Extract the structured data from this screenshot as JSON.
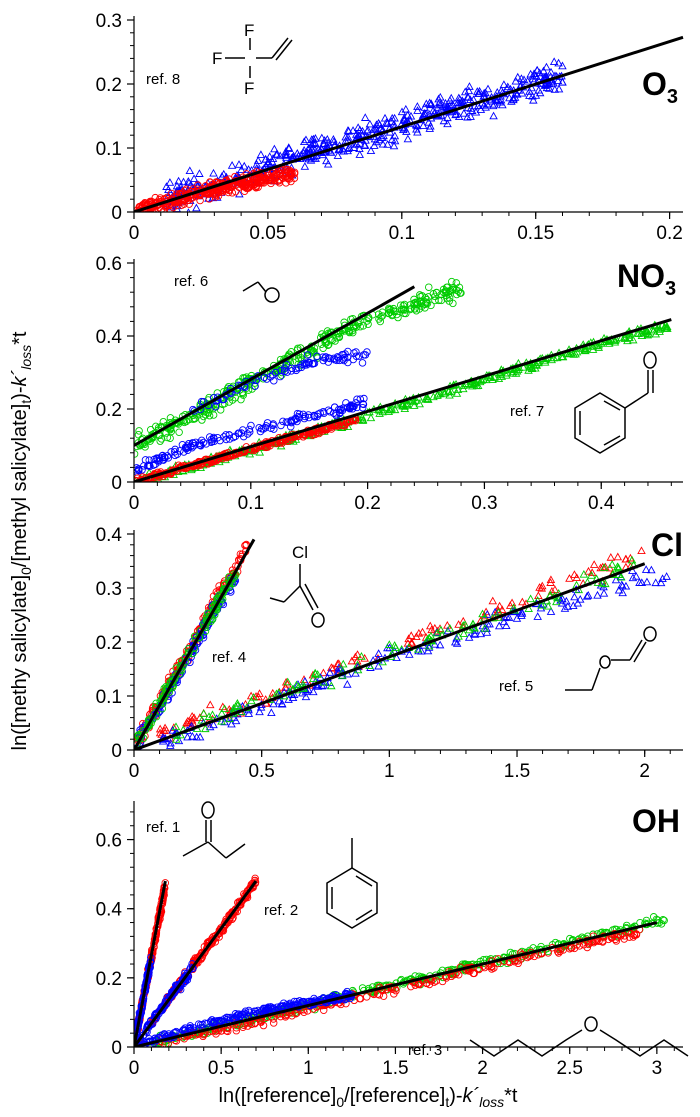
{
  "y_axis_title": "ln([methy salicylate]0/[methyl salicylate]t)-k´loss*t",
  "x_axis_title": "ln([reference]0/[reference]t)-k´loss*t",
  "chart_data": [
    {
      "type": "scatter",
      "species": "O3",
      "xlim": [
        0,
        0.205
      ],
      "ylim": [
        0,
        0.3
      ],
      "xticks": [
        "0",
        "0.05",
        "0.1",
        "0.15",
        "0.2"
      ],
      "xtick_values": [
        0,
        0.05,
        0.1,
        0.15,
        0.2
      ],
      "yticks": [
        "0",
        "0.1",
        "0.2",
        "0.3"
      ],
      "ytick_values": [
        0,
        0.1,
        0.2,
        0.3
      ],
      "series": [
        {
          "color": "#0000ff",
          "marker": "triangle",
          "x": [
            0.01,
            0.02,
            0.04,
            0.06,
            0.08,
            0.1,
            0.12,
            0.14,
            0.16
          ],
          "y": [
            0.015,
            0.03,
            0.055,
            0.085,
            0.11,
            0.135,
            0.165,
            0.185,
            0.215
          ],
          "spread": 0.035,
          "n": 520
        },
        {
          "color": "#ff0000",
          "marker": "circle",
          "x": [
            0.001,
            0.02,
            0.04,
            0.06
          ],
          "y": [
            0.002,
            0.025,
            0.045,
            0.06
          ],
          "spread": 0.018,
          "n": 360
        }
      ],
      "fit_lines": [
        {
          "x": [
            0,
            0.205
          ],
          "y": [
            0,
            0.273
          ]
        }
      ],
      "annotations": [
        {
          "text": "ref. 8",
          "molecule": "CF3-CH=CH2"
        }
      ]
    },
    {
      "type": "scatter",
      "species": "NO3",
      "xlim": [
        0,
        0.47
      ],
      "ylim": [
        0,
        0.6
      ],
      "xticks": [
        "0",
        "0.1",
        "0.2",
        "0.3",
        "0.4"
      ],
      "xtick_values": [
        0,
        0.1,
        0.2,
        0.3,
        0.4
      ],
      "yticks": [
        "0",
        "0.2",
        "0.4",
        "0.6"
      ],
      "ytick_values": [
        0,
        0.2,
        0.4,
        0.6
      ],
      "series": [
        {
          "color": "#00cc00",
          "marker": "circle",
          "x": [
            0,
            0.05,
            0.1,
            0.15,
            0.2,
            0.25,
            0.28
          ],
          "y": [
            0.1,
            0.18,
            0.27,
            0.36,
            0.45,
            0.5,
            0.52
          ],
          "spread": 0.04,
          "n": 380
        },
        {
          "color": "#0000ff",
          "marker": "circle",
          "x": [
            0.05,
            0.1,
            0.15,
            0.2
          ],
          "y": [
            0.2,
            0.27,
            0.33,
            0.35
          ],
          "spread": 0.025,
          "n": 90
        },
        {
          "color": "#00cc00",
          "marker": "triangle",
          "x": [
            0,
            0.1,
            0.2,
            0.3,
            0.4,
            0.46
          ],
          "y": [
            0,
            0.09,
            0.18,
            0.28,
            0.38,
            0.43
          ],
          "spread": 0.02,
          "n": 420
        },
        {
          "color": "#0000ff",
          "marker": "circle",
          "x": [
            0,
            0.05,
            0.1,
            0.15,
            0.2
          ],
          "y": [
            0.03,
            0.1,
            0.14,
            0.18,
            0.22
          ],
          "spread": 0.02,
          "n": 160
        },
        {
          "color": "#ff0000",
          "marker": "circle",
          "x": [
            0,
            0.05,
            0.1,
            0.15,
            0.19
          ],
          "y": [
            0,
            0.045,
            0.09,
            0.135,
            0.17
          ],
          "spread": 0.012,
          "n": 260
        }
      ],
      "fit_lines": [
        {
          "x": [
            0,
            0.24
          ],
          "y": [
            0.1,
            0.535
          ]
        },
        {
          "x": [
            0,
            0.46
          ],
          "y": [
            0,
            0.445
          ]
        }
      ],
      "annotations": [
        {
          "text": "ref. 6",
          "molecule": "CH3CHO"
        },
        {
          "text": "ref. 7",
          "molecule": "benzaldehyde"
        }
      ]
    },
    {
      "type": "scatter",
      "species": "Cl",
      "xlim": [
        0,
        2.15
      ],
      "ylim": [
        0,
        0.4
      ],
      "xticks": [
        "0",
        "0.5",
        "1",
        "1.5",
        "2"
      ],
      "xtick_values": [
        0,
        0.5,
        1,
        1.5,
        2
      ],
      "yticks": [
        "0",
        "0.1",
        "0.2",
        "0.3",
        "0.4"
      ],
      "ytick_values": [
        0,
        0.1,
        0.2,
        0.3,
        0.4
      ],
      "series": [
        {
          "color": "#ff0000",
          "marker": "circle",
          "x": [
            0.01,
            0.1,
            0.2,
            0.3,
            0.4,
            0.44
          ],
          "y": [
            0.01,
            0.09,
            0.17,
            0.26,
            0.34,
            0.38
          ],
          "spread": 0.02,
          "n": 200
        },
        {
          "color": "#0000ff",
          "marker": "circle",
          "x": [
            0.01,
            0.1,
            0.2,
            0.3,
            0.4
          ],
          "y": [
            0.01,
            0.08,
            0.16,
            0.25,
            0.32
          ],
          "spread": 0.02,
          "n": 120
        },
        {
          "color": "#00cc00",
          "marker": "circle",
          "x": [
            0.01,
            0.1,
            0.2,
            0.3,
            0.4
          ],
          "y": [
            0.01,
            0.08,
            0.17,
            0.25,
            0.33
          ],
          "spread": 0.02,
          "n": 120
        },
        {
          "color": "#ff0000",
          "marker": "triangle",
          "x": [
            0.1,
            0.5,
            1,
            1.5,
            2
          ],
          "y": [
            0.03,
            0.1,
            0.19,
            0.27,
            0.37
          ],
          "spread": 0.025,
          "n": 120
        },
        {
          "color": "#0000ff",
          "marker": "triangle",
          "x": [
            0.1,
            0.5,
            1,
            1.5,
            2.1
          ],
          "y": [
            0.01,
            0.08,
            0.17,
            0.25,
            0.33
          ],
          "spread": 0.025,
          "n": 180
        },
        {
          "color": "#00cc00",
          "marker": "triangle",
          "x": [
            0.1,
            0.5,
            1,
            1.5,
            2
          ],
          "y": [
            0.02,
            0.09,
            0.18,
            0.26,
            0.35
          ],
          "spread": 0.025,
          "n": 120
        }
      ],
      "fit_lines": [
        {
          "x": [
            0,
            0.47
          ],
          "y": [
            0,
            0.39
          ]
        },
        {
          "x": [
            0,
            2
          ],
          "y": [
            0,
            0.345
          ]
        }
      ],
      "annotations": [
        {
          "text": "ref. 4",
          "molecule": "chloroacetone"
        },
        {
          "text": "ref. 5",
          "molecule": "ethyl formate"
        }
      ]
    },
    {
      "type": "scatter",
      "species": "OH",
      "xlim": [
        0,
        3.15
      ],
      "ylim": [
        0,
        0.7
      ],
      "xticks": [
        "0",
        "0.5",
        "1",
        "1.5",
        "2",
        "2.5",
        "3"
      ],
      "xtick_values": [
        0,
        0.5,
        1,
        1.5,
        2,
        2.5,
        3
      ],
      "yticks": [
        "0",
        "0.2",
        "0.4",
        "0.6"
      ],
      "ytick_values": [
        0,
        0.2,
        0.4,
        0.6
      ],
      "series": [
        {
          "color": "#ff0000",
          "marker": "circle",
          "x": [
            0,
            0.05,
            0.1,
            0.15,
            0.18
          ],
          "y": [
            0,
            0.13,
            0.26,
            0.39,
            0.47
          ],
          "spread": 0.02,
          "n": 150
        },
        {
          "color": "#0000ff",
          "marker": "circle",
          "x": [
            0,
            0.03,
            0.06,
            0.1
          ],
          "y": [
            0,
            0.08,
            0.16,
            0.26
          ],
          "spread": 0.02,
          "n": 90
        },
        {
          "color": "#ff0000",
          "marker": "circle",
          "x": [
            0.1,
            0.3,
            0.5,
            0.7
          ],
          "y": [
            0.07,
            0.21,
            0.34,
            0.48
          ],
          "spread": 0.02,
          "n": 190
        },
        {
          "color": "#0000ff",
          "marker": "circle",
          "x": [
            0,
            0.1,
            0.2,
            0.35
          ],
          "y": [
            0,
            0.07,
            0.14,
            0.24
          ],
          "spread": 0.02,
          "n": 110
        },
        {
          "color": "#00cc00",
          "marker": "circle",
          "x": [
            0,
            0.5,
            1,
            1.5,
            2,
            2.5,
            3.05
          ],
          "y": [
            0,
            0.06,
            0.12,
            0.18,
            0.24,
            0.3,
            0.37
          ],
          "spread": 0.02,
          "n": 380
        },
        {
          "color": "#ff0000",
          "marker": "circle",
          "x": [
            0,
            0.5,
            1,
            1.5,
            2,
            2.5,
            2.9
          ],
          "y": [
            0,
            0.05,
            0.11,
            0.17,
            0.23,
            0.29,
            0.33
          ],
          "spread": 0.02,
          "n": 260
        },
        {
          "color": "#0000ff",
          "marker": "circle",
          "x": [
            0,
            0.3,
            0.6,
            0.9,
            1.25
          ],
          "y": [
            0,
            0.05,
            0.09,
            0.12,
            0.15
          ],
          "spread": 0.015,
          "n": 240
        }
      ],
      "fit_lines": [
        {
          "x": [
            0,
            0.18
          ],
          "y": [
            0,
            0.48
          ]
        },
        {
          "x": [
            0,
            0.7
          ],
          "y": [
            0,
            0.48
          ]
        },
        {
          "x": [
            0,
            3
          ],
          "y": [
            0,
            0.36
          ]
        }
      ],
      "annotations": [
        {
          "text": "ref. 1",
          "molecule": "2-butanone"
        },
        {
          "text": "ref. 2",
          "molecule": "toluene"
        },
        {
          "text": "ref. 3",
          "molecule": "dibutyl ether"
        }
      ]
    }
  ]
}
